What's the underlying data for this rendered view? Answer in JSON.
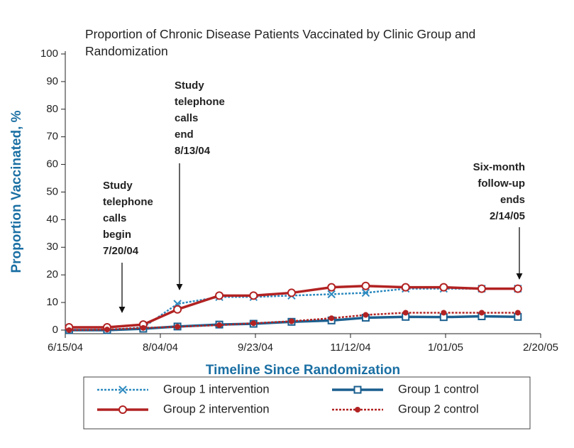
{
  "chart_data": {
    "type": "line",
    "title": "Proportion of Chronic Disease Patients Vaccinated by Clinic Group and Randomization",
    "xlabel": "Timeline Since Randomization",
    "ylabel": "Proportion Vaccinated, %",
    "x": [
      "2004-06-17",
      "2004-07-07",
      "2004-07-26",
      "2004-08-13",
      "2004-09-04",
      "2004-09-22",
      "2004-10-12",
      "2004-11-02",
      "2004-11-20",
      "2004-12-11",
      "2004-12-31",
      "2005-01-20",
      "2005-02-08"
    ],
    "xlim": [
      "2004-06-15",
      "2005-02-20"
    ],
    "xticks": [
      {
        "value": "2004-06-15",
        "label": "6/15/04"
      },
      {
        "value": "2004-08-04",
        "label": "8/04/04"
      },
      {
        "value": "2004-09-23",
        "label": "9/23/04"
      },
      {
        "value": "2004-11-12",
        "label": "11/12/04"
      },
      {
        "value": "2005-01-01",
        "label": "1/01/05"
      },
      {
        "value": "2005-02-20",
        "label": "2/20/05"
      }
    ],
    "ylim": [
      -1.3,
      100
    ],
    "yticks": [
      0,
      10,
      20,
      30,
      40,
      50,
      60,
      70,
      80,
      90,
      100
    ],
    "series": [
      {
        "name": "Group 1 intervention",
        "color": "#2e8bc0",
        "dashed": true,
        "marker": "x",
        "values": [
          0,
          0,
          1,
          9.5,
          12,
          12,
          12.5,
          13,
          13.5,
          15,
          15,
          15,
          15
        ]
      },
      {
        "name": "Group 1 control",
        "color": "#1a5f8f",
        "dashed": false,
        "marker": "square",
        "values": [
          0,
          0,
          0.5,
          1.3,
          2,
          2.3,
          3,
          3.5,
          4.5,
          4.8,
          4.7,
          5,
          4.8
        ]
      },
      {
        "name": "Group 2 intervention",
        "color": "#b22222",
        "dashed": false,
        "marker": "circle",
        "values": [
          1,
          1,
          2,
          7.5,
          12.5,
          12.5,
          13.5,
          15.5,
          16,
          15.5,
          15.5,
          15,
          15
        ]
      },
      {
        "name": "Group 2 control",
        "color": "#b22222",
        "dashed": true,
        "marker": "dot",
        "values": [
          0,
          0.2,
          0.8,
          1.2,
          1.8,
          2.5,
          3.2,
          4.3,
          5.5,
          6.3,
          6.3,
          6.3,
          6.3
        ]
      }
    ],
    "annotations": [
      {
        "lines": [
          "Study",
          "telephone",
          "calls",
          "begin",
          "7/20/04"
        ]
      },
      {
        "lines": [
          "Study",
          "telephone",
          "calls",
          "end",
          "8/13/04"
        ]
      },
      {
        "lines": [
          "Six-month",
          "follow-up",
          "ends",
          "2/14/05"
        ]
      }
    ]
  }
}
